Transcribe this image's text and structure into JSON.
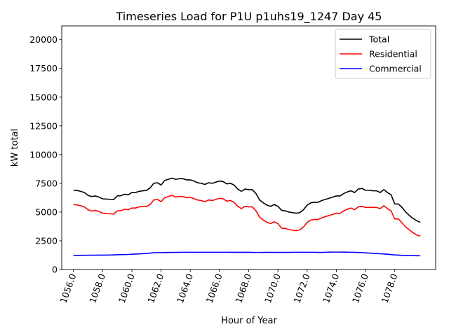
{
  "chart_data": {
    "type": "line",
    "title": "Timeseries Load for P1U p1uhs19_1247  Day 45",
    "xlabel": "Hour of Year",
    "ylabel": "kW total",
    "xlim": [
      1055.2,
      1080.8
    ],
    "ylim": [
      0,
      21200
    ],
    "x_ticks": [
      1056,
      1058,
      1060,
      1062,
      1064,
      1066,
      1068,
      1070,
      1072,
      1074,
      1076,
      1078
    ],
    "x_tick_labels": [
      "1056.0",
      "1058.0",
      "1060.0",
      "1062.0",
      "1064.0",
      "1066.0",
      "1068.0",
      "1070.0",
      "1072.0",
      "1074.0",
      "1076.0",
      "1078.0"
    ],
    "y_ticks": [
      0,
      2500,
      5000,
      7500,
      10000,
      12500,
      15000,
      17500,
      20000
    ],
    "y_tick_labels": [
      "0",
      "2500",
      "5000",
      "7500",
      "10000",
      "12500",
      "15000",
      "17500",
      "20000"
    ],
    "legend_position": "upper right",
    "x": [
      1056,
      1056.25,
      1056.5,
      1056.75,
      1057,
      1057.25,
      1057.5,
      1057.75,
      1058,
      1058.25,
      1058.5,
      1058.75,
      1059,
      1059.25,
      1059.5,
      1059.75,
      1060,
      1060.25,
      1060.5,
      1060.75,
      1061,
      1061.25,
      1061.5,
      1061.75,
      1062,
      1062.25,
      1062.5,
      1062.75,
      1063,
      1063.25,
      1063.5,
      1063.75,
      1064,
      1064.25,
      1064.5,
      1064.75,
      1065,
      1065.25,
      1065.5,
      1065.75,
      1066,
      1066.25,
      1066.5,
      1066.75,
      1067,
      1067.25,
      1067.5,
      1067.75,
      1068,
      1068.25,
      1068.5,
      1068.75,
      1069,
      1069.25,
      1069.5,
      1069.75,
      1070,
      1070.25,
      1070.5,
      1070.75,
      1071,
      1071.25,
      1071.5,
      1071.75,
      1072,
      1072.25,
      1072.5,
      1072.75,
      1073,
      1073.25,
      1073.5,
      1073.75,
      1074,
      1074.25,
      1074.5,
      1074.75,
      1075,
      1075.25,
      1075.5,
      1075.75,
      1076,
      1076.25,
      1076.5,
      1076.75,
      1077,
      1077.25,
      1077.5,
      1077.75,
      1078,
      1078.25,
      1078.5,
      1078.75,
      1079,
      1079.25,
      1079.5,
      1079.75
    ],
    "series": [
      {
        "name": "Total",
        "color": "#000000",
        "values": [
          6900,
          6880,
          6800,
          6700,
          6450,
          6350,
          6400,
          6300,
          6150,
          6130,
          6100,
          6080,
          6400,
          6420,
          6550,
          6500,
          6700,
          6700,
          6800,
          6850,
          6880,
          7100,
          7500,
          7550,
          7350,
          7750,
          7850,
          7950,
          7850,
          7900,
          7900,
          7800,
          7800,
          7700,
          7550,
          7500,
          7400,
          7550,
          7500,
          7600,
          7700,
          7650,
          7450,
          7500,
          7350,
          7000,
          6800,
          7000,
          6950,
          6950,
          6600,
          6050,
          5800,
          5600,
          5500,
          5650,
          5500,
          5150,
          5100,
          5000,
          4950,
          4900,
          4950,
          5200,
          5600,
          5800,
          5850,
          5850,
          6000,
          6100,
          6200,
          6300,
          6400,
          6400,
          6600,
          6750,
          6850,
          6700,
          7000,
          7050,
          6900,
          6900,
          6850,
          6850,
          6700,
          6950,
          6700,
          6500,
          5700,
          5700,
          5400,
          5000,
          4700,
          4450,
          4250,
          4100
        ]
      },
      {
        "name": "Residential",
        "color": "#ff0000",
        "values": [
          5650,
          5620,
          5550,
          5450,
          5200,
          5080,
          5150,
          5050,
          4900,
          4880,
          4850,
          4820,
          5100,
          5120,
          5250,
          5200,
          5350,
          5350,
          5450,
          5480,
          5480,
          5650,
          6050,
          6100,
          5900,
          6250,
          6350,
          6450,
          6300,
          6350,
          6350,
          6250,
          6280,
          6170,
          6050,
          6000,
          5900,
          6050,
          6000,
          6100,
          6200,
          6150,
          5950,
          6000,
          5850,
          5500,
          5300,
          5500,
          5450,
          5450,
          5100,
          4550,
          4300,
          4100,
          4000,
          4150,
          4000,
          3600,
          3580,
          3480,
          3420,
          3380,
          3450,
          3700,
          4100,
          4300,
          4350,
          4350,
          4500,
          4600,
          4700,
          4800,
          4900,
          4880,
          5100,
          5250,
          5350,
          5200,
          5450,
          5500,
          5400,
          5400,
          5400,
          5400,
          5300,
          5550,
          5300,
          5100,
          4400,
          4400,
          4050,
          3700,
          3450,
          3200,
          3000,
          2900
        ]
      },
      {
        "name": "Commercial",
        "color": "#0000ff",
        "values": [
          1230,
          1230,
          1230,
          1235,
          1240,
          1245,
          1245,
          1250,
          1250,
          1255,
          1260,
          1270,
          1285,
          1295,
          1300,
          1310,
          1330,
          1345,
          1360,
          1380,
          1400,
          1430,
          1460,
          1470,
          1470,
          1480,
          1480,
          1490,
          1490,
          1495,
          1500,
          1500,
          1495,
          1500,
          1500,
          1500,
          1500,
          1500,
          1500,
          1500,
          1500,
          1500,
          1500,
          1495,
          1495,
          1495,
          1495,
          1495,
          1495,
          1490,
          1485,
          1485,
          1490,
          1495,
          1490,
          1490,
          1490,
          1490,
          1490,
          1490,
          1495,
          1500,
          1500,
          1500,
          1500,
          1500,
          1495,
          1490,
          1490,
          1500,
          1510,
          1515,
          1515,
          1515,
          1510,
          1505,
          1500,
          1495,
          1480,
          1470,
          1450,
          1430,
          1410,
          1390,
          1370,
          1350,
          1330,
          1300,
          1270,
          1250,
          1230,
          1220,
          1210,
          1205,
          1200,
          1195
        ]
      }
    ]
  }
}
